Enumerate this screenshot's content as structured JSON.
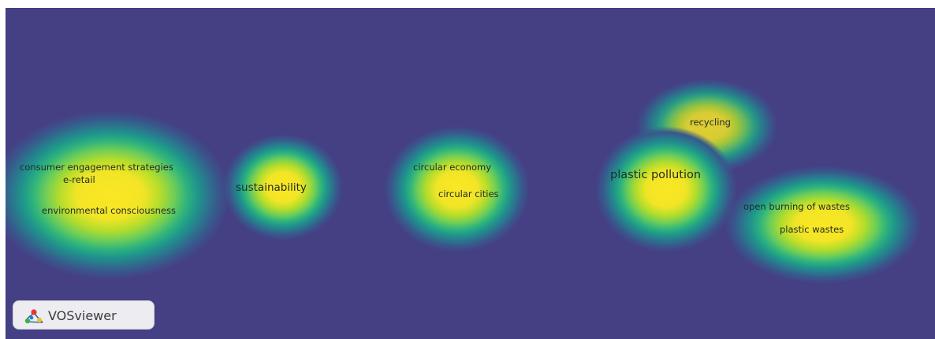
{
  "keywords": {
    "consumer_engagement": "consumer engagement strategies",
    "e_retail": "e-retail",
    "environmental": "environmental consciousness",
    "sustainability": "sustainability",
    "circular_economy": "circular economy",
    "circular_cities": "circular cities",
    "recycling": "recycling",
    "plastic_pollution": "plastic pollution",
    "open_burning": "open burning of wastes",
    "plastic_wastes": "plastic wastes"
  },
  "logo": {
    "label": "VOSviewer",
    "icon": "vosviewer-logo-icon"
  },
  "colors": {
    "background": "#453f84",
    "density_high": "#fbe723",
    "density_mid": "#2fb47c"
  }
}
